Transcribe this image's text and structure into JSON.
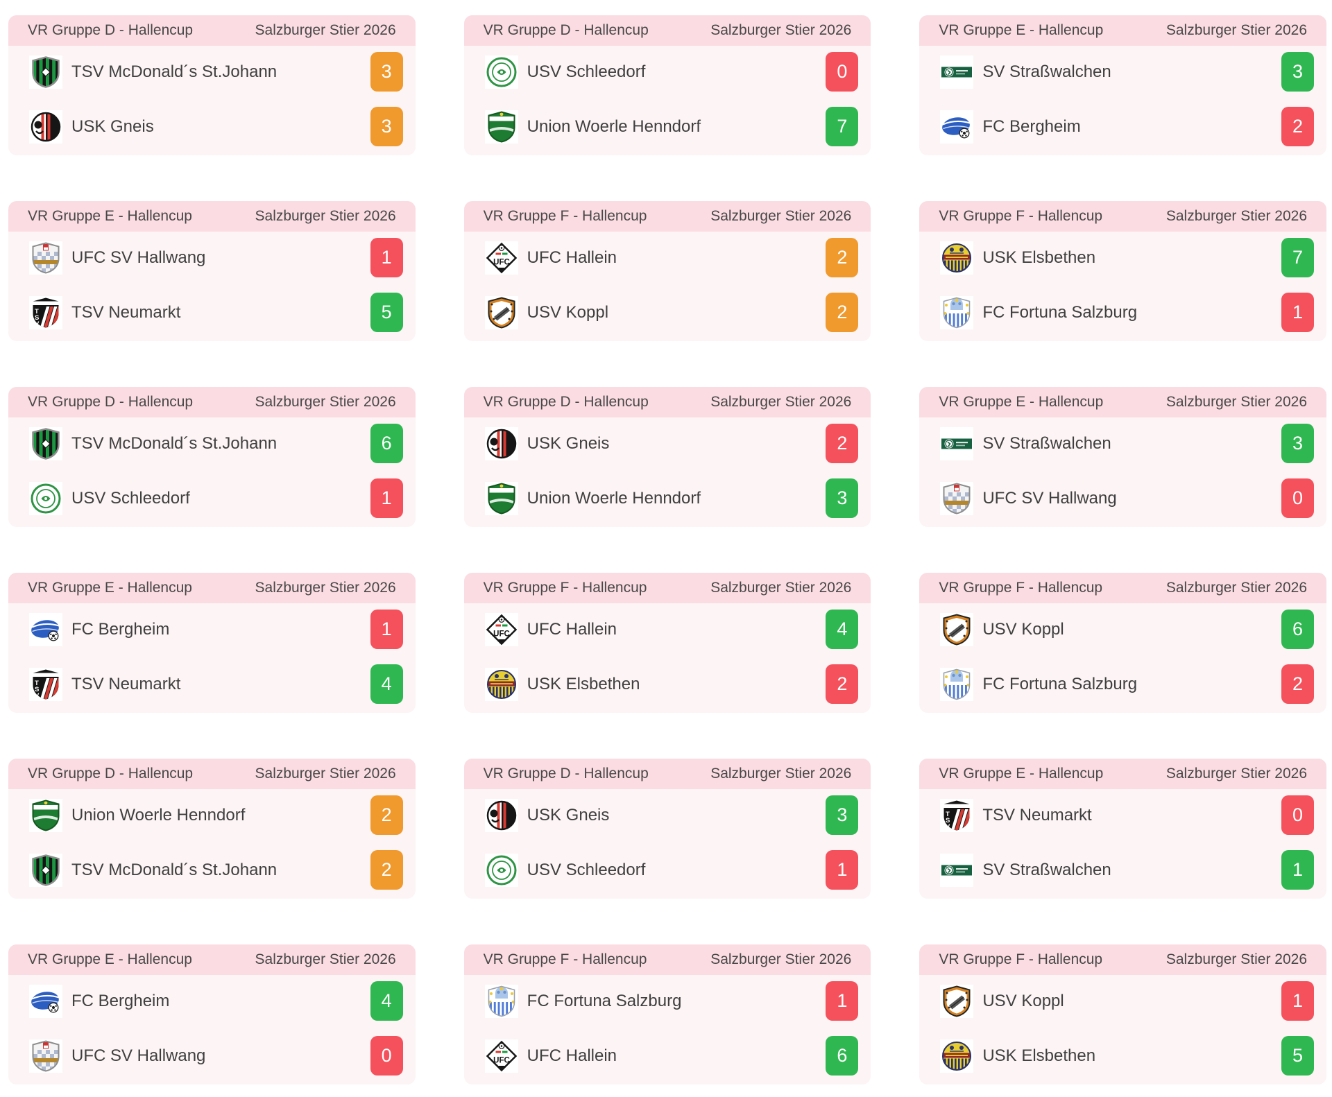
{
  "theme": {
    "page_bg": "#ffffff",
    "card_bg": "#fdf4f5",
    "header_bg": "#fbdce2",
    "header_text": "#484848",
    "team_text": "#3f3f3f",
    "badge_text": "#ffffff",
    "win_color": "#2fb851",
    "loss_color": "#f4515c",
    "draw_color": "#f0992d"
  },
  "competition": "Salzburger Stier 2026",
  "logos": {
    "stjohann": {
      "shape": "shield-stripes",
      "colors": [
        "#ffffff",
        "#169a3e",
        "#141414"
      ]
    },
    "gneis": {
      "shape": "circle-half",
      "colors": [
        "#ffffff",
        "#161616",
        "#d93a31"
      ]
    },
    "schleedorf": {
      "shape": "circle-ring",
      "colors": [
        "#ffffff",
        "#2e9444"
      ]
    },
    "henndorf": {
      "shape": "shield-band",
      "colors": [
        "#1d7c31",
        "#ffffff",
        "#f3d23a"
      ]
    },
    "strasswalchen": {
      "shape": "square-bar",
      "colors": [
        "#ffffff",
        "#176040"
      ]
    },
    "bergheim": {
      "shape": "oval-ball",
      "colors": [
        "#ffffff",
        "#2c5ec2"
      ]
    },
    "hallwang": {
      "shape": "shield-check",
      "colors": [
        "#f4f4f4",
        "#aeb9cf",
        "#b5872c",
        "#cc3333"
      ]
    },
    "neumarkt": {
      "shape": "shield-tsv",
      "colors": [
        "#141414",
        "#ffffff",
        "#d93a31"
      ]
    },
    "hallein": {
      "shape": "diamond-ufc",
      "colors": [
        "#ffffff",
        "#161616",
        "#d93a31",
        "#169a3e"
      ],
      "text": "UFC"
    },
    "koppl": {
      "shape": "shield-diag",
      "colors": [
        "#d8821f",
        "#ffffff",
        "#555555"
      ]
    },
    "elsbethen": {
      "shape": "circle-bands",
      "colors": [
        "#e7cf31",
        "#2b3169",
        "#93282a"
      ]
    },
    "fortuna": {
      "shape": "shield-stars",
      "colors": [
        "#ffffff",
        "#4f7bd9",
        "#f0c930"
      ]
    }
  },
  "matches": [
    {
      "group": "VR Gruppe D - Hallencup",
      "competition": "Salzburger Stier 2026",
      "teams": [
        {
          "name": "TSV McDonald´s St.Johann",
          "logo": "stjohann",
          "score": "3",
          "result": "draw"
        },
        {
          "name": "USK Gneis",
          "logo": "gneis",
          "score": "3",
          "result": "draw"
        }
      ]
    },
    {
      "group": "VR Gruppe D - Hallencup",
      "competition": "Salzburger Stier 2026",
      "teams": [
        {
          "name": "USV Schleedorf",
          "logo": "schleedorf",
          "score": "0",
          "result": "loss"
        },
        {
          "name": "Union Woerle Henndorf",
          "logo": "henndorf",
          "score": "7",
          "result": "win"
        }
      ]
    },
    {
      "group": "VR Gruppe E - Hallencup",
      "competition": "Salzburger Stier 2026",
      "teams": [
        {
          "name": "SV Straßwalchen",
          "logo": "strasswalchen",
          "score": "3",
          "result": "win"
        },
        {
          "name": "FC Bergheim",
          "logo": "bergheim",
          "score": "2",
          "result": "loss"
        }
      ]
    },
    {
      "group": "VR Gruppe E - Hallencup",
      "competition": "Salzburger Stier 2026",
      "teams": [
        {
          "name": "UFC SV Hallwang",
          "logo": "hallwang",
          "score": "1",
          "result": "loss"
        },
        {
          "name": "TSV Neumarkt",
          "logo": "neumarkt",
          "score": "5",
          "result": "win"
        }
      ]
    },
    {
      "group": "VR Gruppe F - Hallencup",
      "competition": "Salzburger Stier 2026",
      "teams": [
        {
          "name": "UFC Hallein",
          "logo": "hallein",
          "score": "2",
          "result": "draw"
        },
        {
          "name": "USV Koppl",
          "logo": "koppl",
          "score": "2",
          "result": "draw"
        }
      ]
    },
    {
      "group": "VR Gruppe F - Hallencup",
      "competition": "Salzburger Stier 2026",
      "teams": [
        {
          "name": "USK Elsbethen",
          "logo": "elsbethen",
          "score": "7",
          "result": "win"
        },
        {
          "name": "FC Fortuna Salzburg",
          "logo": "fortuna",
          "score": "1",
          "result": "loss"
        }
      ]
    },
    {
      "group": "VR Gruppe D - Hallencup",
      "competition": "Salzburger Stier 2026",
      "teams": [
        {
          "name": "TSV McDonald´s St.Johann",
          "logo": "stjohann",
          "score": "6",
          "result": "win"
        },
        {
          "name": "USV Schleedorf",
          "logo": "schleedorf",
          "score": "1",
          "result": "loss"
        }
      ]
    },
    {
      "group": "VR Gruppe D - Hallencup",
      "competition": "Salzburger Stier 2026",
      "teams": [
        {
          "name": "USK Gneis",
          "logo": "gneis",
          "score": "2",
          "result": "loss"
        },
        {
          "name": "Union Woerle Henndorf",
          "logo": "henndorf",
          "score": "3",
          "result": "win"
        }
      ]
    },
    {
      "group": "VR Gruppe E - Hallencup",
      "competition": "Salzburger Stier 2026",
      "teams": [
        {
          "name": "SV Straßwalchen",
          "logo": "strasswalchen",
          "score": "3",
          "result": "win"
        },
        {
          "name": "UFC SV Hallwang",
          "logo": "hallwang",
          "score": "0",
          "result": "loss"
        }
      ]
    },
    {
      "group": "VR Gruppe E - Hallencup",
      "competition": "Salzburger Stier 2026",
      "teams": [
        {
          "name": "FC Bergheim",
          "logo": "bergheim",
          "score": "1",
          "result": "loss"
        },
        {
          "name": "TSV Neumarkt",
          "logo": "neumarkt",
          "score": "4",
          "result": "win"
        }
      ]
    },
    {
      "group": "VR Gruppe F - Hallencup",
      "competition": "Salzburger Stier 2026",
      "teams": [
        {
          "name": "UFC Hallein",
          "logo": "hallein",
          "score": "4",
          "result": "win"
        },
        {
          "name": "USK Elsbethen",
          "logo": "elsbethen",
          "score": "2",
          "result": "loss"
        }
      ]
    },
    {
      "group": "VR Gruppe F - Hallencup",
      "competition": "Salzburger Stier 2026",
      "teams": [
        {
          "name": "USV Koppl",
          "logo": "koppl",
          "score": "6",
          "result": "win"
        },
        {
          "name": "FC Fortuna Salzburg",
          "logo": "fortuna",
          "score": "2",
          "result": "loss"
        }
      ]
    },
    {
      "group": "VR Gruppe D - Hallencup",
      "competition": "Salzburger Stier 2026",
      "teams": [
        {
          "name": "Union Woerle Henndorf",
          "logo": "henndorf",
          "score": "2",
          "result": "draw"
        },
        {
          "name": "TSV McDonald´s St.Johann",
          "logo": "stjohann",
          "score": "2",
          "result": "draw"
        }
      ]
    },
    {
      "group": "VR Gruppe D - Hallencup",
      "competition": "Salzburger Stier 2026",
      "teams": [
        {
          "name": "USK Gneis",
          "logo": "gneis",
          "score": "3",
          "result": "win"
        },
        {
          "name": "USV Schleedorf",
          "logo": "schleedorf",
          "score": "1",
          "result": "loss"
        }
      ]
    },
    {
      "group": "VR Gruppe E - Hallencup",
      "competition": "Salzburger Stier 2026",
      "teams": [
        {
          "name": "TSV Neumarkt",
          "logo": "neumarkt",
          "score": "0",
          "result": "loss"
        },
        {
          "name": "SV Straßwalchen",
          "logo": "strasswalchen",
          "score": "1",
          "result": "win"
        }
      ]
    },
    {
      "group": "VR Gruppe E - Hallencup",
      "competition": "Salzburger Stier 2026",
      "teams": [
        {
          "name": "FC Bergheim",
          "logo": "bergheim",
          "score": "4",
          "result": "win"
        },
        {
          "name": "UFC SV Hallwang",
          "logo": "hallwang",
          "score": "0",
          "result": "loss"
        }
      ]
    },
    {
      "group": "VR Gruppe F - Hallencup",
      "competition": "Salzburger Stier 2026",
      "teams": [
        {
          "name": "FC Fortuna Salzburg",
          "logo": "fortuna",
          "score": "1",
          "result": "loss"
        },
        {
          "name": "UFC Hallein",
          "logo": "hallein",
          "score": "6",
          "result": "win"
        }
      ]
    },
    {
      "group": "VR Gruppe F - Hallencup",
      "competition": "Salzburger Stier 2026",
      "teams": [
        {
          "name": "USV Koppl",
          "logo": "koppl",
          "score": "1",
          "result": "loss"
        },
        {
          "name": "USK Elsbethen",
          "logo": "elsbethen",
          "score": "5",
          "result": "win"
        }
      ]
    }
  ]
}
